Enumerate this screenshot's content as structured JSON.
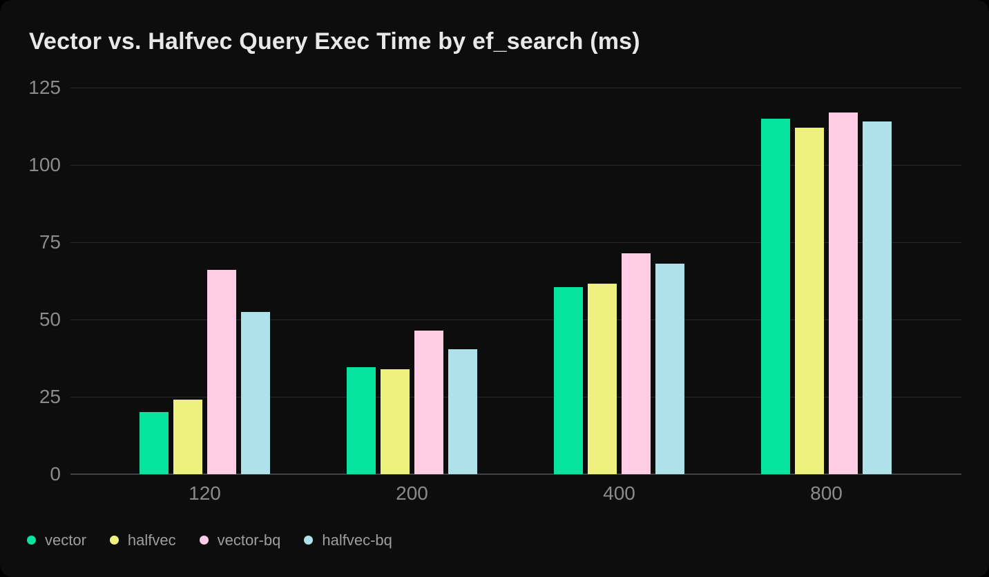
{
  "title": "Vector vs. Halfvec Query Exec Time by ef_search (ms)",
  "colors": {
    "page_background": "#000000",
    "card_background": "#0d0d0e",
    "title_text": "#e8e8e8",
    "tick_text": "#8b8b8b",
    "legend_text": "#9e9e9e",
    "gridline": "#28282a",
    "axis_line": "#414144"
  },
  "chart_data": {
    "type": "bar",
    "title": "Vector vs. Halfvec Query Exec Time by ef_search (ms)",
    "xlabel": "",
    "ylabel": "",
    "categories": [
      "120",
      "200",
      "400",
      "800"
    ],
    "series": [
      {
        "name": "vector",
        "color": "#07e49d",
        "values": [
          20,
          34.5,
          60.5,
          115
        ]
      },
      {
        "name": "halfvec",
        "color": "#eef17d",
        "values": [
          24,
          34,
          61.5,
          112
        ]
      },
      {
        "name": "vector-bq",
        "color": "#fecde5",
        "values": [
          66,
          46.5,
          71.5,
          117
        ]
      },
      {
        "name": "halfvec-bq",
        "color": "#aee1ea",
        "values": [
          52.5,
          40.5,
          68,
          114
        ]
      }
    ],
    "ylim": [
      0,
      125
    ],
    "yticks": [
      0,
      25,
      50,
      75,
      100,
      125
    ],
    "grid": true,
    "legend_position": "bottom-left"
  }
}
